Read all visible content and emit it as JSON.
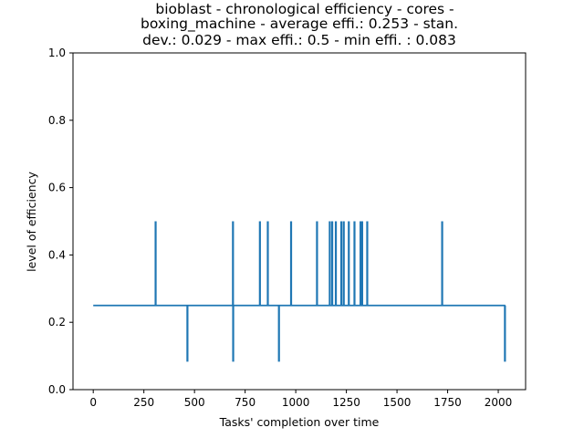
{
  "chart_data": {
    "type": "line",
    "title_lines": [
      "bioblast - chronological efficiency - cores -",
      "boxing_machine - average effi.: 0.253 - stan.",
      "dev.: 0.029 - max effi.: 0.5 - min effi. : 0.083"
    ],
    "xlabel": "Tasks' completion over time",
    "ylabel": "level of efficiency",
    "xlim": [
      -100,
      2135
    ],
    "ylim": [
      0.0,
      1.0
    ],
    "x_ticks": [
      0,
      250,
      500,
      750,
      1000,
      1250,
      1500,
      1750,
      2000
    ],
    "y_ticks": [
      0.0,
      0.2,
      0.4,
      0.6,
      0.8,
      1.0
    ],
    "y_tick_labels": [
      "0.0",
      "0.2",
      "0.4",
      "0.6",
      "0.8",
      "1.0"
    ],
    "grid": false,
    "line_color": "#1f77b4",
    "baseline": 0.25,
    "x_range": [
      0,
      2035
    ],
    "spikes_up": [
      {
        "x": 308,
        "y": 0.5
      },
      {
        "x": 690,
        "y": 0.5
      },
      {
        "x": 823,
        "y": 0.5
      },
      {
        "x": 862,
        "y": 0.5
      },
      {
        "x": 977,
        "y": 0.5
      },
      {
        "x": 1105,
        "y": 0.5
      },
      {
        "x": 1168,
        "y": 0.5
      },
      {
        "x": 1180,
        "y": 0.5
      },
      {
        "x": 1198,
        "y": 0.5
      },
      {
        "x": 1225,
        "y": 0.5
      },
      {
        "x": 1237,
        "y": 0.5
      },
      {
        "x": 1262,
        "y": 0.5
      },
      {
        "x": 1290,
        "y": 0.5
      },
      {
        "x": 1320,
        "y": 0.5
      },
      {
        "x": 1328,
        "y": 0.5
      },
      {
        "x": 1353,
        "y": 0.5
      },
      {
        "x": 1723,
        "y": 0.5
      }
    ],
    "spikes_down": [
      {
        "x": 465,
        "y": 0.083
      },
      {
        "x": 691,
        "y": 0.083
      },
      {
        "x": 917,
        "y": 0.083
      },
      {
        "x": 2033,
        "y": 0.083
      }
    ]
  }
}
